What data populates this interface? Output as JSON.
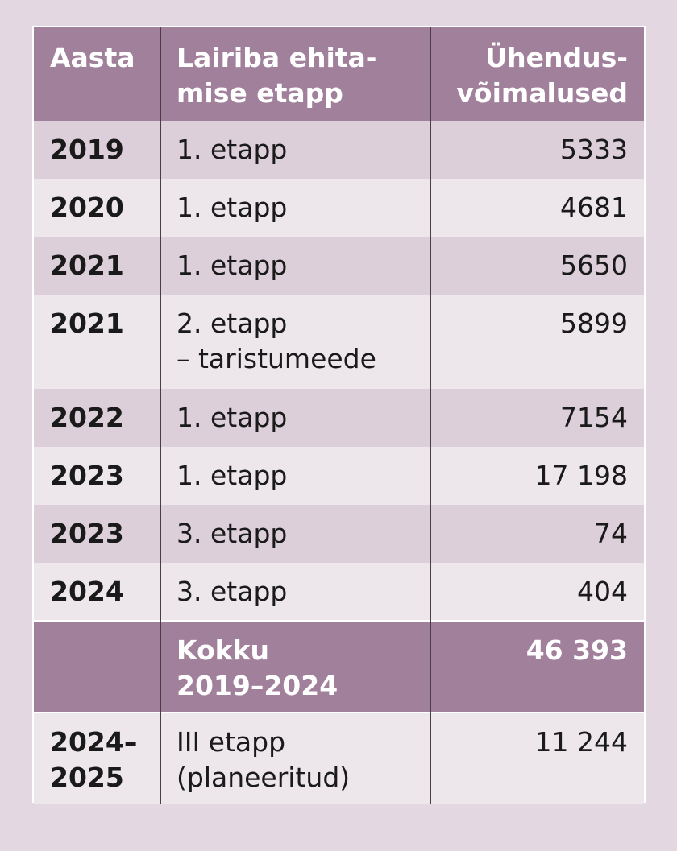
{
  "table": {
    "headers": {
      "year": "Aasta",
      "stage_line1": "Lairiba ehita-",
      "stage_line2": "mise etapp",
      "connections_line1": "Ühendus-",
      "connections_line2": "võimalused"
    },
    "rows": [
      {
        "year": "2019",
        "stage_line1": "1. etapp",
        "stage_line2": "",
        "connections": "5333"
      },
      {
        "year": "2020",
        "stage_line1": "1. etapp",
        "stage_line2": "",
        "connections": "4681"
      },
      {
        "year": "2021",
        "stage_line1": "1. etapp",
        "stage_line2": "",
        "connections": "5650"
      },
      {
        "year": "2021",
        "stage_line1": "2. etapp",
        "stage_line2": "– taristumeede",
        "connections": "5899"
      },
      {
        "year": "2022",
        "stage_line1": "1. etapp",
        "stage_line2": "",
        "connections": "7154"
      },
      {
        "year": "2023",
        "stage_line1": "1. etapp",
        "stage_line2": "",
        "connections": "17 198"
      },
      {
        "year": "2023",
        "stage_line1": "3. etapp",
        "stage_line2": "",
        "connections": "74"
      },
      {
        "year": "2024",
        "stage_line1": "3. etapp",
        "stage_line2": "",
        "connections": "404"
      }
    ],
    "total": {
      "year": "",
      "label_line1": "Kokku",
      "label_line2": "2019–2024",
      "connections": "46 393"
    },
    "planned": {
      "year_line1": "2024–",
      "year_line2": "2025",
      "stage_line1": "III etapp",
      "stage_line2": "(planeeritud)",
      "connections": "11 244"
    }
  },
  "colors": {
    "background": "#e3d7e2",
    "header": "#a1809b",
    "row_shade": "#dccfda",
    "row_light": "#ede7ec"
  }
}
